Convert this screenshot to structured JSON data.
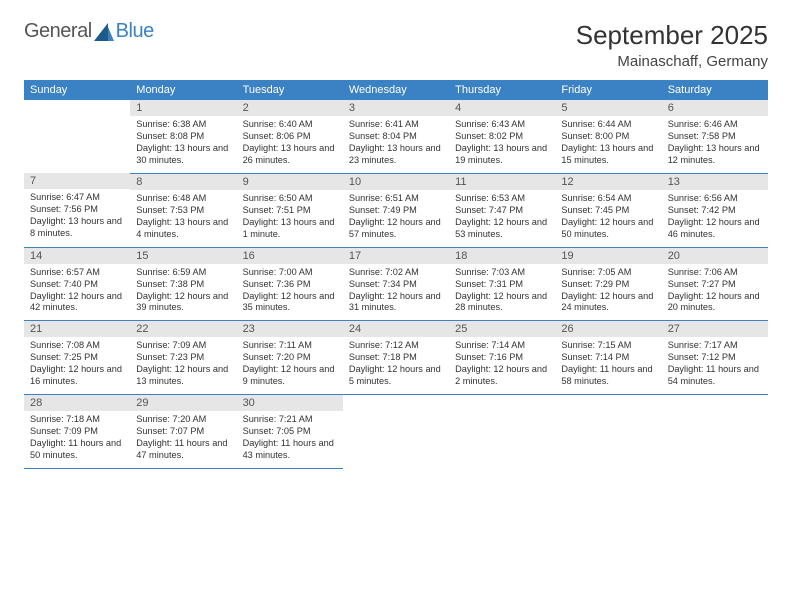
{
  "logo": {
    "general": "General",
    "blue": "Blue"
  },
  "header": {
    "month_title": "September 2025",
    "location": "Mainaschaff, Germany"
  },
  "colors": {
    "header_bg": "#3b82c4",
    "header_text": "#ffffff",
    "daynum_bg": "#e6e6e6",
    "border": "#3b82c4",
    "logo_gray": "#555555",
    "logo_blue": "#3b82c4"
  },
  "day_names": [
    "Sunday",
    "Monday",
    "Tuesday",
    "Wednesday",
    "Thursday",
    "Friday",
    "Saturday"
  ],
  "weeks": [
    [
      null,
      {
        "n": "1",
        "sr": "Sunrise: 6:38 AM",
        "ss": "Sunset: 8:08 PM",
        "dl": "Daylight: 13 hours and 30 minutes."
      },
      {
        "n": "2",
        "sr": "Sunrise: 6:40 AM",
        "ss": "Sunset: 8:06 PM",
        "dl": "Daylight: 13 hours and 26 minutes."
      },
      {
        "n": "3",
        "sr": "Sunrise: 6:41 AM",
        "ss": "Sunset: 8:04 PM",
        "dl": "Daylight: 13 hours and 23 minutes."
      },
      {
        "n": "4",
        "sr": "Sunrise: 6:43 AM",
        "ss": "Sunset: 8:02 PM",
        "dl": "Daylight: 13 hours and 19 minutes."
      },
      {
        "n": "5",
        "sr": "Sunrise: 6:44 AM",
        "ss": "Sunset: 8:00 PM",
        "dl": "Daylight: 13 hours and 15 minutes."
      },
      {
        "n": "6",
        "sr": "Sunrise: 6:46 AM",
        "ss": "Sunset: 7:58 PM",
        "dl": "Daylight: 13 hours and 12 minutes."
      }
    ],
    [
      {
        "n": "7",
        "sr": "Sunrise: 6:47 AM",
        "ss": "Sunset: 7:56 PM",
        "dl": "Daylight: 13 hours and 8 minutes."
      },
      {
        "n": "8",
        "sr": "Sunrise: 6:48 AM",
        "ss": "Sunset: 7:53 PM",
        "dl": "Daylight: 13 hours and 4 minutes."
      },
      {
        "n": "9",
        "sr": "Sunrise: 6:50 AM",
        "ss": "Sunset: 7:51 PM",
        "dl": "Daylight: 13 hours and 1 minute."
      },
      {
        "n": "10",
        "sr": "Sunrise: 6:51 AM",
        "ss": "Sunset: 7:49 PM",
        "dl": "Daylight: 12 hours and 57 minutes."
      },
      {
        "n": "11",
        "sr": "Sunrise: 6:53 AM",
        "ss": "Sunset: 7:47 PM",
        "dl": "Daylight: 12 hours and 53 minutes."
      },
      {
        "n": "12",
        "sr": "Sunrise: 6:54 AM",
        "ss": "Sunset: 7:45 PM",
        "dl": "Daylight: 12 hours and 50 minutes."
      },
      {
        "n": "13",
        "sr": "Sunrise: 6:56 AM",
        "ss": "Sunset: 7:42 PM",
        "dl": "Daylight: 12 hours and 46 minutes."
      }
    ],
    [
      {
        "n": "14",
        "sr": "Sunrise: 6:57 AM",
        "ss": "Sunset: 7:40 PM",
        "dl": "Daylight: 12 hours and 42 minutes."
      },
      {
        "n": "15",
        "sr": "Sunrise: 6:59 AM",
        "ss": "Sunset: 7:38 PM",
        "dl": "Daylight: 12 hours and 39 minutes."
      },
      {
        "n": "16",
        "sr": "Sunrise: 7:00 AM",
        "ss": "Sunset: 7:36 PM",
        "dl": "Daylight: 12 hours and 35 minutes."
      },
      {
        "n": "17",
        "sr": "Sunrise: 7:02 AM",
        "ss": "Sunset: 7:34 PM",
        "dl": "Daylight: 12 hours and 31 minutes."
      },
      {
        "n": "18",
        "sr": "Sunrise: 7:03 AM",
        "ss": "Sunset: 7:31 PM",
        "dl": "Daylight: 12 hours and 28 minutes."
      },
      {
        "n": "19",
        "sr": "Sunrise: 7:05 AM",
        "ss": "Sunset: 7:29 PM",
        "dl": "Daylight: 12 hours and 24 minutes."
      },
      {
        "n": "20",
        "sr": "Sunrise: 7:06 AM",
        "ss": "Sunset: 7:27 PM",
        "dl": "Daylight: 12 hours and 20 minutes."
      }
    ],
    [
      {
        "n": "21",
        "sr": "Sunrise: 7:08 AM",
        "ss": "Sunset: 7:25 PM",
        "dl": "Daylight: 12 hours and 16 minutes."
      },
      {
        "n": "22",
        "sr": "Sunrise: 7:09 AM",
        "ss": "Sunset: 7:23 PM",
        "dl": "Daylight: 12 hours and 13 minutes."
      },
      {
        "n": "23",
        "sr": "Sunrise: 7:11 AM",
        "ss": "Sunset: 7:20 PM",
        "dl": "Daylight: 12 hours and 9 minutes."
      },
      {
        "n": "24",
        "sr": "Sunrise: 7:12 AM",
        "ss": "Sunset: 7:18 PM",
        "dl": "Daylight: 12 hours and 5 minutes."
      },
      {
        "n": "25",
        "sr": "Sunrise: 7:14 AM",
        "ss": "Sunset: 7:16 PM",
        "dl": "Daylight: 12 hours and 2 minutes."
      },
      {
        "n": "26",
        "sr": "Sunrise: 7:15 AM",
        "ss": "Sunset: 7:14 PM",
        "dl": "Daylight: 11 hours and 58 minutes."
      },
      {
        "n": "27",
        "sr": "Sunrise: 7:17 AM",
        "ss": "Sunset: 7:12 PM",
        "dl": "Daylight: 11 hours and 54 minutes."
      }
    ],
    [
      {
        "n": "28",
        "sr": "Sunrise: 7:18 AM",
        "ss": "Sunset: 7:09 PM",
        "dl": "Daylight: 11 hours and 50 minutes."
      },
      {
        "n": "29",
        "sr": "Sunrise: 7:20 AM",
        "ss": "Sunset: 7:07 PM",
        "dl": "Daylight: 11 hours and 47 minutes."
      },
      {
        "n": "30",
        "sr": "Sunrise: 7:21 AM",
        "ss": "Sunset: 7:05 PM",
        "dl": "Daylight: 11 hours and 43 minutes."
      },
      null,
      null,
      null,
      null
    ]
  ]
}
